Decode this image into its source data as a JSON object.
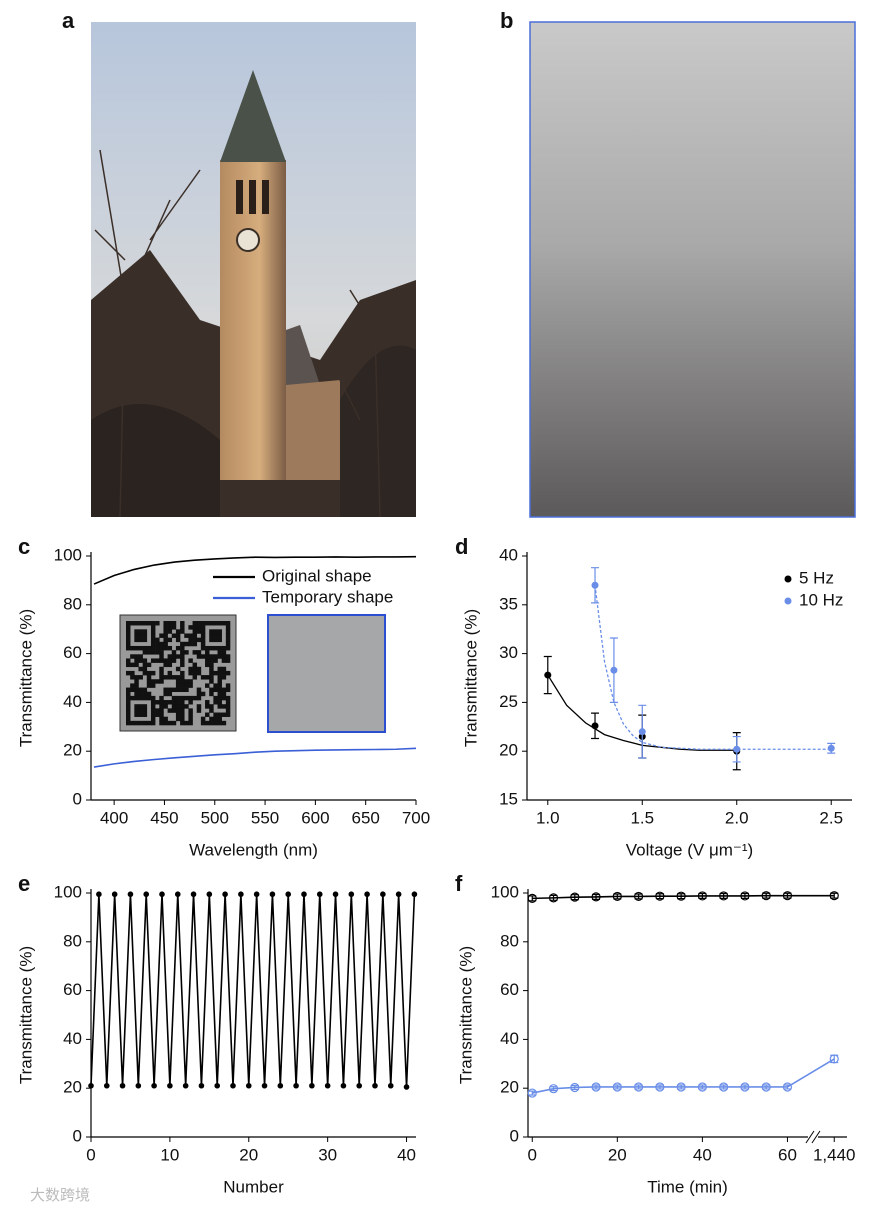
{
  "photo_panels": [
    "a",
    "b"
  ],
  "watermark": "大数跨境",
  "chart_data": [
    {
      "panel": "c",
      "type": "line",
      "x_label": "Wavelength (nm)",
      "y_label": "Transmittance (%)",
      "xlim": [
        377,
        700
      ],
      "xticks": [
        400,
        450,
        500,
        550,
        600,
        650,
        700
      ],
      "ylim": [
        0,
        100
      ],
      "yticks": [
        0,
        20,
        40,
        60,
        80,
        100
      ],
      "legend": "top-right",
      "series": [
        {
          "name": "Original shape",
          "color": "#000000",
          "x": [
            380,
            400,
            420,
            440,
            460,
            480,
            500,
            520,
            540,
            560,
            580,
            600,
            620,
            640,
            660,
            680,
            700
          ],
          "values": [
            88.5,
            92,
            94.5,
            96.3,
            97.5,
            98.3,
            98.8,
            99.2,
            99.5,
            99.4,
            99.5,
            99.5,
            99.6,
            99.5,
            99.6,
            99.6,
            99.7
          ]
        },
        {
          "name": "Temporary shape",
          "color": "#3a5fd6",
          "x": [
            380,
            400,
            420,
            440,
            460,
            480,
            500,
            520,
            540,
            560,
            580,
            600,
            620,
            640,
            660,
            680,
            700
          ],
          "values": [
            13.5,
            14.8,
            15.8,
            16.6,
            17.3,
            17.9,
            18.5,
            19.0,
            19.6,
            20.0,
            20.2,
            20.4,
            20.5,
            20.6,
            20.7,
            20.8,
            21.2
          ]
        }
      ]
    },
    {
      "panel": "d",
      "type": "scatter",
      "x_label": "Voltage (V μm⁻¹)",
      "y_label": "Transmittance (%)",
      "xlim": [
        0.89,
        2.61
      ],
      "xticks": [
        {
          "value": 1,
          "label": "1.0"
        },
        1.5,
        {
          "value": 2,
          "label": "2.0"
        },
        2.5
      ],
      "ylim": [
        15,
        40
      ],
      "yticks": [
        15,
        20,
        25,
        30,
        35,
        40
      ],
      "legend": "top-right",
      "series": [
        {
          "name": "5 Hz",
          "color": "#000000",
          "x": [
            1,
            1.25,
            1.5,
            2
          ],
          "values": [
            27.8,
            22.6,
            21.5,
            20.0
          ],
          "errors": [
            1.9,
            1.3,
            2.2,
            1.9
          ],
          "fit": {
            "dash": false,
            "x": [
              1,
              1.1,
              1.2,
              1.3,
              1.4,
              1.5,
              1.6,
              1.7,
              1.8,
              1.9,
              2
            ],
            "values": [
              27.8,
              24.7,
              22.9,
              21.7,
              21.1,
              20.6,
              20.4,
              20.2,
              20.1,
              20.1,
              20.1
            ]
          }
        },
        {
          "name": "10 Hz",
          "color": "#6a8ee8",
          "x": [
            1.25,
            1.35,
            1.5,
            2,
            2.5
          ],
          "values": [
            37.0,
            28.3,
            22.0,
            20.2,
            20.3
          ],
          "errors": [
            1.8,
            3.3,
            2.7,
            1.3,
            0.5
          ],
          "fit": {
            "dash": true,
            "x": [
              1.25,
              1.3,
              1.35,
              1.4,
              1.45,
              1.5,
              1.6,
              1.7,
              1.8,
              2,
              2.5
            ],
            "values": [
              37.0,
              29.2,
              25.0,
              22.8,
              21.6,
              20.9,
              20.4,
              20.3,
              20.2,
              20.2,
              20.2
            ]
          }
        }
      ]
    },
    {
      "panel": "e",
      "type": "line",
      "markers": "filled",
      "x_label": "Number",
      "y_label": "Transmittance (%)",
      "xlim": [
        0,
        41.2
      ],
      "xticks": [
        0,
        10,
        20,
        30,
        40
      ],
      "ylim": [
        0,
        100
      ],
      "yticks": [
        0,
        20,
        40,
        60,
        80,
        100
      ],
      "series": [
        {
          "color": "#000000",
          "x": [
            0,
            1,
            2,
            3,
            4,
            5,
            6,
            7,
            8,
            9,
            10,
            11,
            12,
            13,
            14,
            15,
            16,
            17,
            18,
            19,
            20,
            21,
            22,
            23,
            24,
            25,
            26,
            27,
            28,
            29,
            30,
            31,
            32,
            33,
            34,
            35,
            36,
            37,
            38,
            39,
            40,
            41
          ],
          "values": [
            21,
            99.5,
            21,
            99.5,
            21,
            99.5,
            21,
            99.5,
            21,
            99.5,
            21,
            99.5,
            21,
            99.5,
            21,
            99.5,
            21,
            99.5,
            21,
            99.5,
            21,
            99.5,
            21,
            99.5,
            21,
            99.5,
            21,
            99.5,
            21,
            99.5,
            21,
            99.5,
            21,
            99.5,
            21,
            99.5,
            21,
            99.5,
            21,
            99.5,
            20.5,
            99.5
          ]
        }
      ]
    },
    {
      "panel": "f",
      "type": "line",
      "markers": "open",
      "x_label": "Time (min)",
      "y_label": "Transmittance (%)",
      "xlim": [
        -1,
        1443
      ],
      "x_break": [
        66,
        1435
      ],
      "xticks": [
        0,
        20,
        40,
        60,
        {
          "value": 1440,
          "label": "1,440"
        }
      ],
      "ylim": [
        0,
        100
      ],
      "yticks": [
        0,
        20,
        40,
        60,
        80,
        100
      ],
      "series": [
        {
          "color": "#000000",
          "x": [
            0,
            5,
            10,
            15,
            20,
            25,
            30,
            35,
            40,
            45,
            50,
            55,
            60,
            1440
          ],
          "values": [
            97.8,
            98.0,
            98.3,
            98.4,
            98.6,
            98.6,
            98.7,
            98.7,
            98.8,
            98.8,
            98.8,
            98.9,
            98.9,
            98.9
          ],
          "errors": [
            1,
            1,
            1,
            1,
            1,
            1,
            1,
            1,
            1,
            1,
            1,
            1,
            1,
            1
          ]
        },
        {
          "color": "#6a8ee8",
          "x": [
            0,
            5,
            10,
            15,
            20,
            25,
            30,
            35,
            40,
            45,
            50,
            55,
            60,
            1440
          ],
          "values": [
            18.0,
            19.8,
            20.3,
            20.5,
            20.5,
            20.5,
            20.5,
            20.5,
            20.5,
            20.5,
            20.5,
            20.5,
            20.5,
            32.0
          ],
          "errors": [
            0.8,
            0.8,
            0.8,
            0.8,
            0.8,
            0.8,
            0.8,
            0.8,
            0.8,
            0.8,
            0.8,
            0.8,
            0.8,
            1.5
          ]
        }
      ]
    }
  ]
}
